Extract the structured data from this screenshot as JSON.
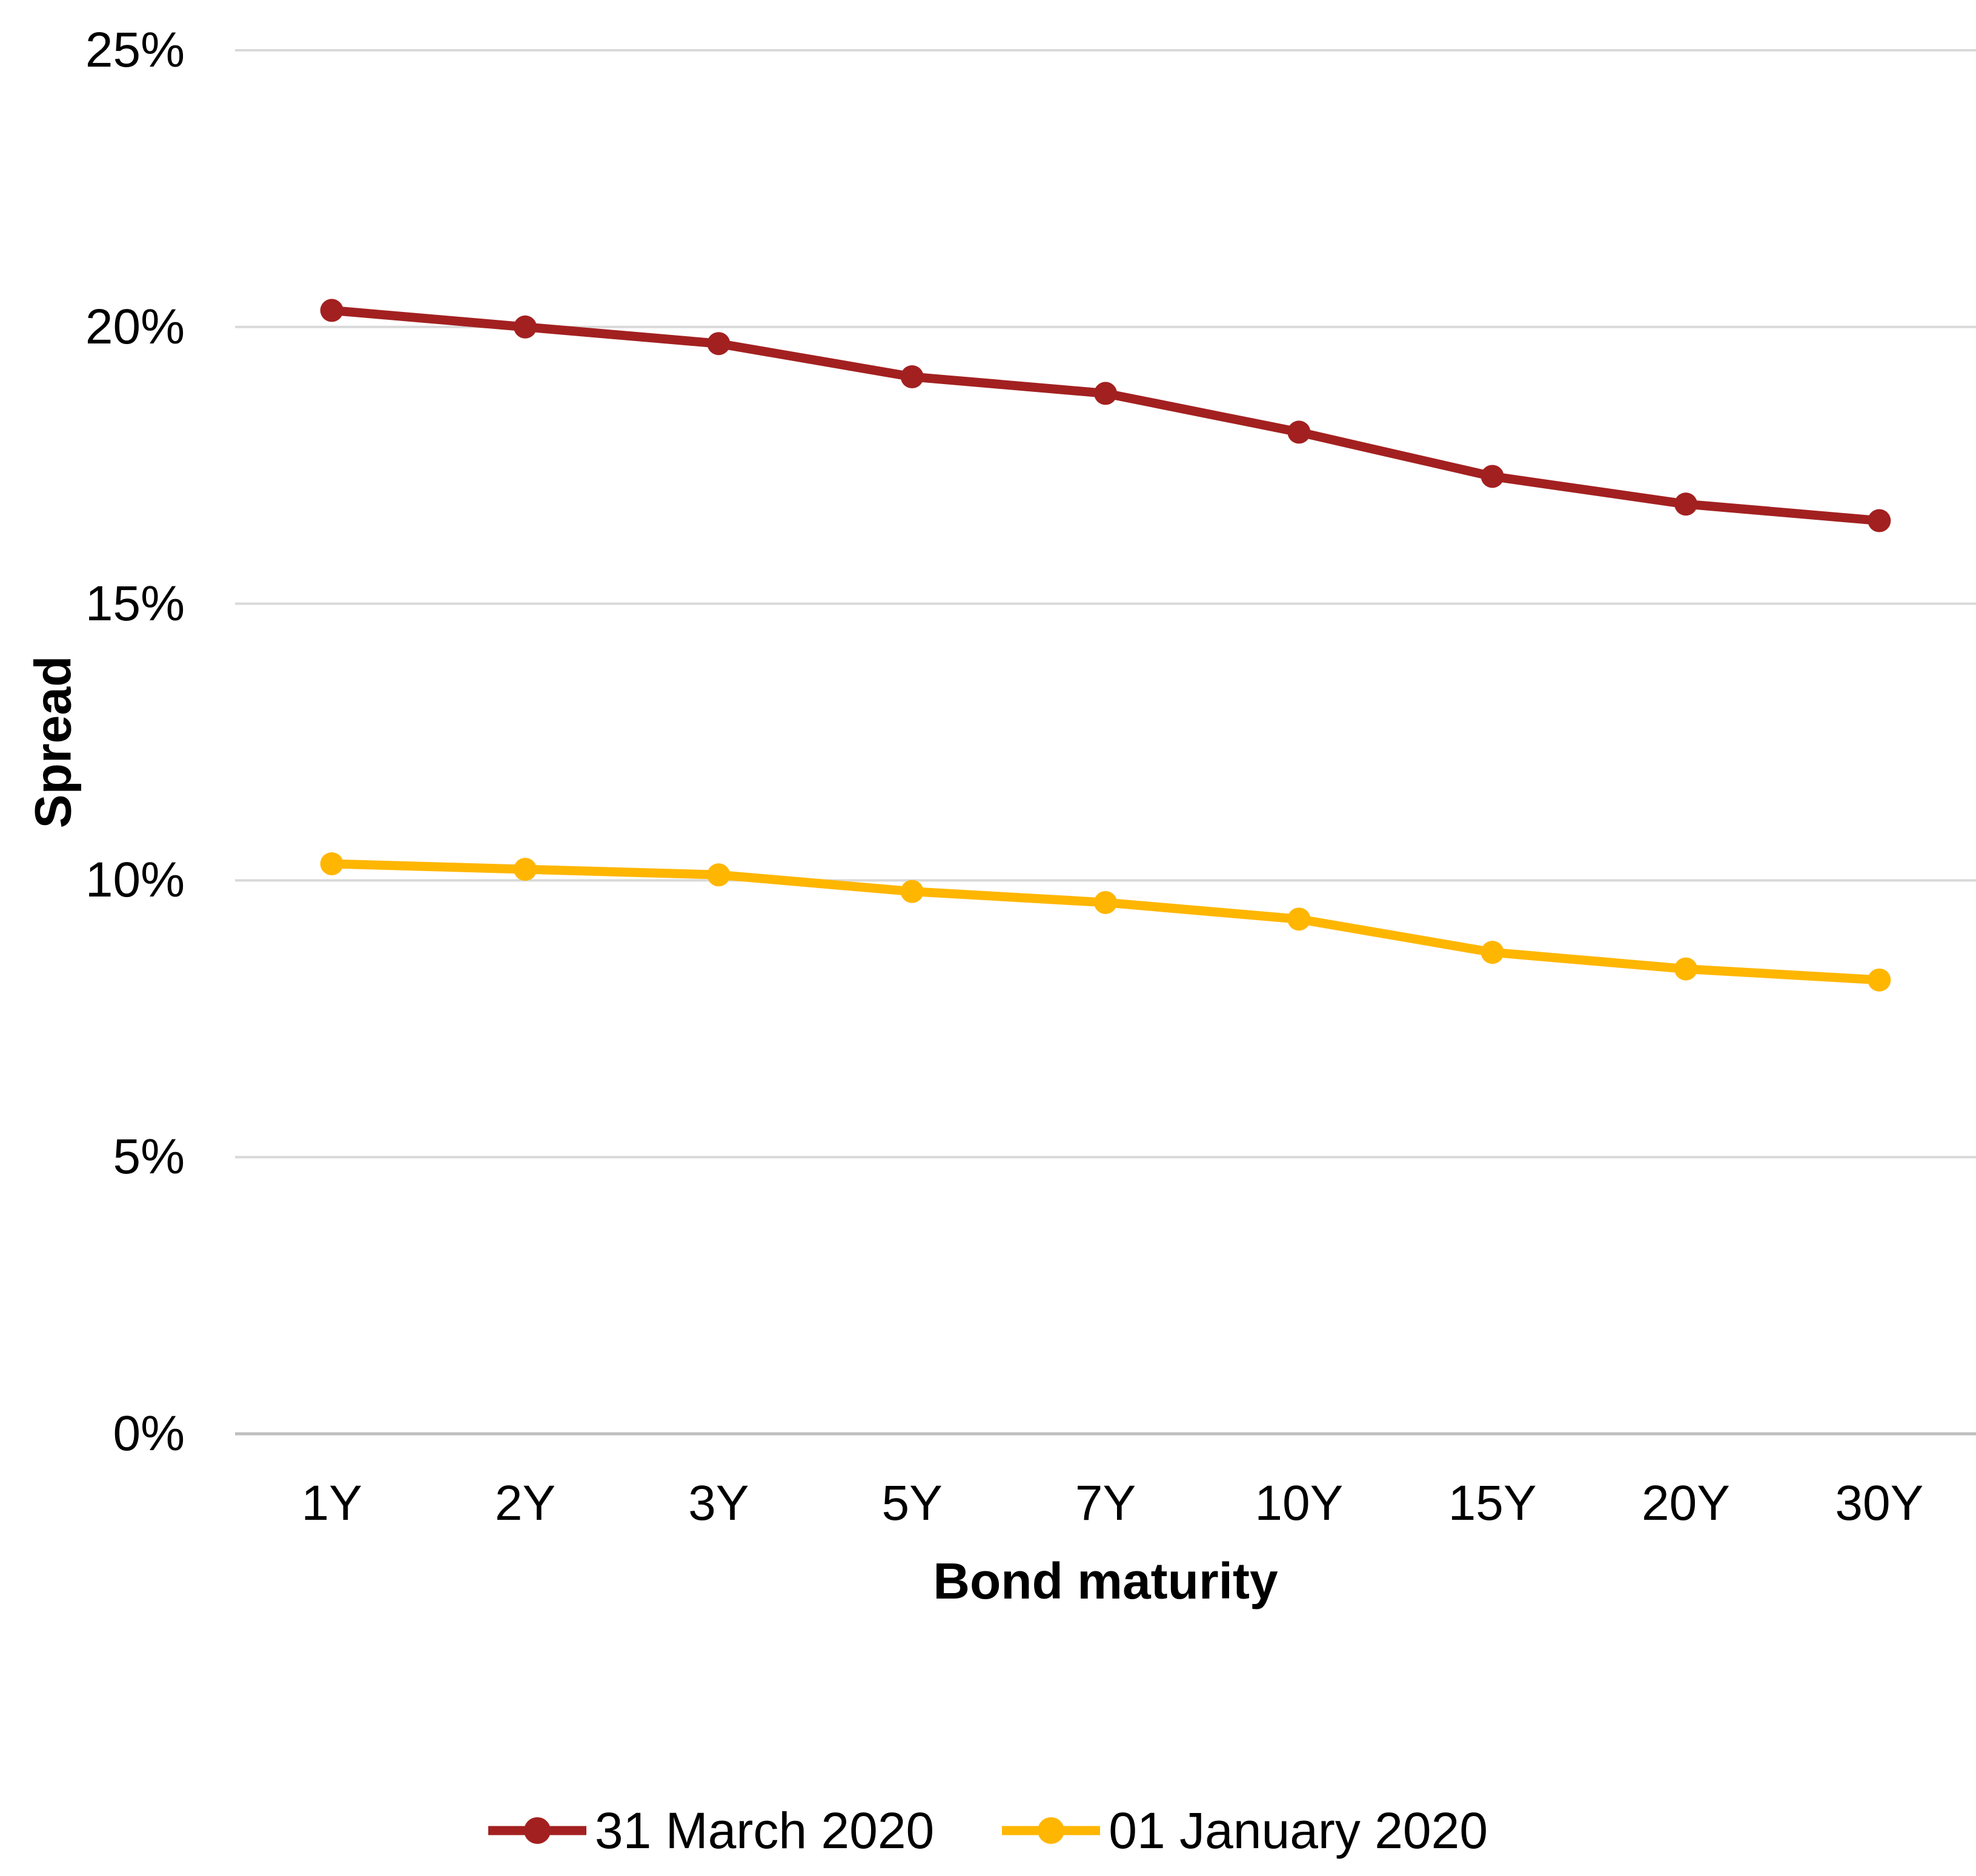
{
  "chart_data": {
    "type": "line",
    "title": "",
    "categories": [
      "1Y",
      "2Y",
      "3Y",
      "5Y",
      "7Y",
      "10Y",
      "15Y",
      "20Y",
      "30Y"
    ],
    "series": [
      {
        "name": "31 March 2020",
        "color": "#A32020",
        "values": [
          20.3,
          20.0,
          19.7,
          19.1,
          18.8,
          18.1,
          17.3,
          16.8,
          16.5
        ]
      },
      {
        "name": "01 January 2020",
        "color": "#FFB600",
        "values": [
          10.3,
          10.2,
          10.1,
          9.8,
          9.6,
          9.3,
          8.7,
          8.4,
          8.2
        ]
      }
    ],
    "xlabel": "Bond maturity",
    "ylabel": "Spread",
    "ylim": [
      0,
      25
    ],
    "yticks": [
      0,
      5,
      10,
      15,
      20,
      25
    ],
    "ytick_labels": [
      "0%",
      "5%",
      "10%",
      "15%",
      "20%",
      "25%"
    ],
    "grid": true,
    "legend_position": "bottom",
    "gridline_color": "#D9D9D9",
    "axisline_color": "#BFBFBF",
    "text_color": "#000000"
  }
}
